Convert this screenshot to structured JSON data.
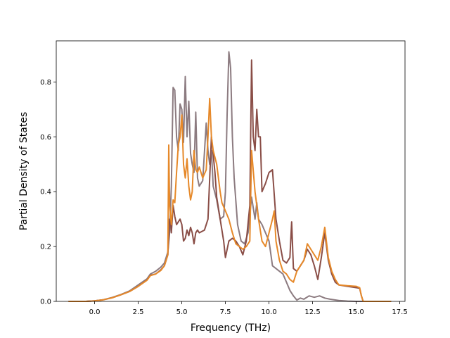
{
  "chart_data": {
    "type": "line",
    "title": "",
    "xlabel": "Frequency (THz)",
    "ylabel": "Partial Density of States",
    "xlim": [
      -2.2,
      17.8
    ],
    "ylim": [
      0,
      0.95
    ],
    "xticks": [
      0.0,
      2.5,
      5.0,
      7.5,
      10.0,
      12.5,
      15.0,
      17.5
    ],
    "xtick_labels": [
      "0.0",
      "2.5",
      "5.0",
      "7.5",
      "10.0",
      "12.5",
      "15.0",
      "17.5"
    ],
    "yticks": [
      0.0,
      0.2,
      0.4,
      0.6,
      0.8
    ],
    "ytick_labels": [
      "0.0",
      "0.2",
      "0.4",
      "0.6",
      "0.8"
    ],
    "grid": false,
    "legend": "none",
    "series": [
      {
        "color": "#8c7b80",
        "points": [
          [
            -1.5,
            0
          ],
          [
            -0.5,
            0
          ],
          [
            0,
            0.002
          ],
          [
            0.5,
            0.006
          ],
          [
            1,
            0.014
          ],
          [
            1.5,
            0.025
          ],
          [
            2,
            0.038
          ],
          [
            2.5,
            0.06
          ],
          [
            3,
            0.082
          ],
          [
            3.2,
            0.1
          ],
          [
            3.5,
            0.11
          ],
          [
            3.8,
            0.125
          ],
          [
            4.0,
            0.14
          ],
          [
            4.2,
            0.18
          ],
          [
            4.3,
            0.25
          ],
          [
            4.4,
            0.42
          ],
          [
            4.5,
            0.78
          ],
          [
            4.6,
            0.77
          ],
          [
            4.7,
            0.6
          ],
          [
            4.8,
            0.55
          ],
          [
            4.9,
            0.72
          ],
          [
            5.0,
            0.7
          ],
          [
            5.1,
            0.58
          ],
          [
            5.2,
            0.82
          ],
          [
            5.3,
            0.6
          ],
          [
            5.4,
            0.73
          ],
          [
            5.5,
            0.54
          ],
          [
            5.6,
            0.5
          ],
          [
            5.7,
            0.47
          ],
          [
            5.8,
            0.69
          ],
          [
            5.9,
            0.45
          ],
          [
            6.0,
            0.42
          ],
          [
            6.2,
            0.44
          ],
          [
            6.4,
            0.65
          ],
          [
            6.5,
            0.55
          ],
          [
            6.6,
            0.5
          ],
          [
            6.7,
            0.55
          ],
          [
            6.8,
            0.42
          ],
          [
            7.0,
            0.37
          ],
          [
            7.2,
            0.3
          ],
          [
            7.4,
            0.31
          ],
          [
            7.5,
            0.4
          ],
          [
            7.6,
            0.68
          ],
          [
            7.7,
            0.91
          ],
          [
            7.8,
            0.85
          ],
          [
            7.9,
            0.6
          ],
          [
            8.0,
            0.45
          ],
          [
            8.2,
            0.28
          ],
          [
            8.4,
            0.22
          ],
          [
            8.6,
            0.21
          ],
          [
            8.8,
            0.25
          ],
          [
            9.0,
            0.38
          ],
          [
            9.2,
            0.3
          ],
          [
            9.3,
            0.36
          ],
          [
            9.4,
            0.3
          ],
          [
            9.6,
            0.28
          ],
          [
            9.8,
            0.25
          ],
          [
            10.0,
            0.22
          ],
          [
            10.2,
            0.13
          ],
          [
            10.4,
            0.12
          ],
          [
            10.6,
            0.11
          ],
          [
            10.8,
            0.1
          ],
          [
            11.0,
            0.07
          ],
          [
            11.2,
            0.04
          ],
          [
            11.4,
            0.02
          ],
          [
            11.6,
            0.005
          ],
          [
            11.8,
            0.012
          ],
          [
            12.0,
            0.008
          ],
          [
            12.3,
            0.02
          ],
          [
            12.6,
            0.015
          ],
          [
            12.9,
            0.02
          ],
          [
            13.2,
            0.012
          ],
          [
            13.5,
            0.008
          ],
          [
            14.0,
            0.003
          ],
          [
            14.5,
            0.001
          ],
          [
            15.0,
            0
          ],
          [
            17.0,
            0
          ]
        ]
      },
      {
        "color": "#8a4e47",
        "points": [
          [
            -1.5,
            0
          ],
          [
            -0.5,
            0
          ],
          [
            0,
            0.002
          ],
          [
            0.5,
            0.006
          ],
          [
            1,
            0.013
          ],
          [
            1.5,
            0.024
          ],
          [
            2,
            0.036
          ],
          [
            2.5,
            0.055
          ],
          [
            3,
            0.078
          ],
          [
            3.2,
            0.095
          ],
          [
            3.5,
            0.1
          ],
          [
            3.8,
            0.115
          ],
          [
            4.0,
            0.13
          ],
          [
            4.2,
            0.17
          ],
          [
            4.3,
            0.3
          ],
          [
            4.35,
            0.3
          ],
          [
            4.4,
            0.25
          ],
          [
            4.5,
            0.35
          ],
          [
            4.6,
            0.31
          ],
          [
            4.7,
            0.28
          ],
          [
            4.8,
            0.29
          ],
          [
            4.9,
            0.3
          ],
          [
            5.0,
            0.28
          ],
          [
            5.1,
            0.22
          ],
          [
            5.2,
            0.23
          ],
          [
            5.3,
            0.26
          ],
          [
            5.4,
            0.24
          ],
          [
            5.5,
            0.27
          ],
          [
            5.6,
            0.25
          ],
          [
            5.7,
            0.21
          ],
          [
            5.8,
            0.25
          ],
          [
            5.9,
            0.26
          ],
          [
            6.0,
            0.25
          ],
          [
            6.3,
            0.26
          ],
          [
            6.5,
            0.3
          ],
          [
            6.7,
            0.6
          ],
          [
            6.9,
            0.47
          ],
          [
            7.0,
            0.38
          ],
          [
            7.2,
            0.3
          ],
          [
            7.4,
            0.22
          ],
          [
            7.5,
            0.16
          ],
          [
            7.7,
            0.22
          ],
          [
            7.9,
            0.23
          ],
          [
            8.1,
            0.22
          ],
          [
            8.3,
            0.2
          ],
          [
            8.5,
            0.17
          ],
          [
            8.7,
            0.22
          ],
          [
            8.9,
            0.35
          ],
          [
            9.0,
            0.88
          ],
          [
            9.1,
            0.6
          ],
          [
            9.2,
            0.55
          ],
          [
            9.3,
            0.7
          ],
          [
            9.4,
            0.6
          ],
          [
            9.5,
            0.6
          ],
          [
            9.6,
            0.4
          ],
          [
            9.8,
            0.43
          ],
          [
            10.0,
            0.47
          ],
          [
            10.2,
            0.48
          ],
          [
            10.4,
            0.3
          ],
          [
            10.6,
            0.22
          ],
          [
            10.8,
            0.15
          ],
          [
            11.0,
            0.14
          ],
          [
            11.2,
            0.16
          ],
          [
            11.3,
            0.29
          ],
          [
            11.4,
            0.12
          ],
          [
            11.6,
            0.11
          ],
          [
            11.8,
            0.13
          ],
          [
            12.0,
            0.15
          ],
          [
            12.2,
            0.19
          ],
          [
            12.4,
            0.17
          ],
          [
            12.6,
            0.13
          ],
          [
            12.8,
            0.08
          ],
          [
            13.0,
            0.16
          ],
          [
            13.2,
            0.25
          ],
          [
            13.4,
            0.15
          ],
          [
            13.6,
            0.1
          ],
          [
            13.8,
            0.07
          ],
          [
            14.0,
            0.06
          ],
          [
            14.5,
            0.055
          ],
          [
            15.0,
            0.05
          ],
          [
            15.2,
            0.048
          ],
          [
            15.3,
            0.02
          ],
          [
            15.4,
            0
          ],
          [
            17.0,
            0
          ]
        ]
      },
      {
        "color": "#e6892a",
        "points": [
          [
            -1.5,
            0
          ],
          [
            -0.5,
            0
          ],
          [
            0,
            0.002
          ],
          [
            0.5,
            0.006
          ],
          [
            1,
            0.013
          ],
          [
            1.5,
            0.024
          ],
          [
            2,
            0.036
          ],
          [
            2.5,
            0.055
          ],
          [
            3,
            0.077
          ],
          [
            3.2,
            0.094
          ],
          [
            3.5,
            0.1
          ],
          [
            3.8,
            0.113
          ],
          [
            4.0,
            0.13
          ],
          [
            4.2,
            0.17
          ],
          [
            4.25,
            0.57
          ],
          [
            4.3,
            0.35
          ],
          [
            4.4,
            0.28
          ],
          [
            4.5,
            0.37
          ],
          [
            4.6,
            0.36
          ],
          [
            4.7,
            0.47
          ],
          [
            4.8,
            0.57
          ],
          [
            4.9,
            0.6
          ],
          [
            5.0,
            0.68
          ],
          [
            5.1,
            0.5
          ],
          [
            5.2,
            0.45
          ],
          [
            5.3,
            0.52
          ],
          [
            5.4,
            0.42
          ],
          [
            5.5,
            0.37
          ],
          [
            5.6,
            0.4
          ],
          [
            5.7,
            0.55
          ],
          [
            5.8,
            0.48
          ],
          [
            5.9,
            0.47
          ],
          [
            6.0,
            0.49
          ],
          [
            6.2,
            0.45
          ],
          [
            6.4,
            0.48
          ],
          [
            6.5,
            0.6
          ],
          [
            6.6,
            0.74
          ],
          [
            6.7,
            0.6
          ],
          [
            6.8,
            0.55
          ],
          [
            7.0,
            0.5
          ],
          [
            7.2,
            0.4
          ],
          [
            7.3,
            0.36
          ],
          [
            7.5,
            0.33
          ],
          [
            7.7,
            0.3
          ],
          [
            7.9,
            0.25
          ],
          [
            8.1,
            0.21
          ],
          [
            8.3,
            0.2
          ],
          [
            8.5,
            0.19
          ],
          [
            8.7,
            0.2
          ],
          [
            8.9,
            0.22
          ],
          [
            9.0,
            0.55
          ],
          [
            9.2,
            0.4
          ],
          [
            9.4,
            0.3
          ],
          [
            9.6,
            0.22
          ],
          [
            9.8,
            0.2
          ],
          [
            10.0,
            0.25
          ],
          [
            10.2,
            0.3
          ],
          [
            10.3,
            0.33
          ],
          [
            10.4,
            0.22
          ],
          [
            10.6,
            0.15
          ],
          [
            10.8,
            0.11
          ],
          [
            11.0,
            0.1
          ],
          [
            11.2,
            0.08
          ],
          [
            11.4,
            0.07
          ],
          [
            11.6,
            0.11
          ],
          [
            11.8,
            0.13
          ],
          [
            12.0,
            0.15
          ],
          [
            12.2,
            0.21
          ],
          [
            12.4,
            0.19
          ],
          [
            12.6,
            0.17
          ],
          [
            12.8,
            0.15
          ],
          [
            13.0,
            0.2
          ],
          [
            13.2,
            0.27
          ],
          [
            13.4,
            0.16
          ],
          [
            13.6,
            0.11
          ],
          [
            13.8,
            0.08
          ],
          [
            14.0,
            0.06
          ],
          [
            14.5,
            0.057
          ],
          [
            15.0,
            0.055
          ],
          [
            15.2,
            0.05
          ],
          [
            15.3,
            0.02
          ],
          [
            15.4,
            0
          ],
          [
            17.0,
            0
          ]
        ]
      }
    ]
  }
}
